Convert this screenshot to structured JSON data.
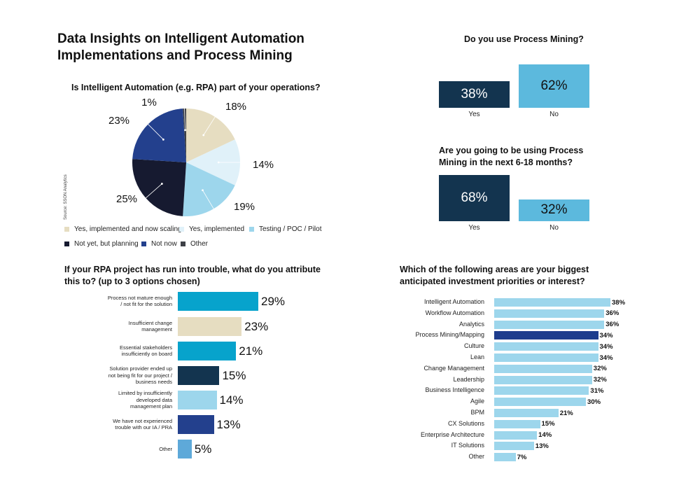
{
  "header": {
    "title_line1": "Data Insights on Intelligent Automation",
    "title_line2": "Implementations and Process Mining"
  },
  "source_note": "Source: SSON Analytics",
  "colors": {
    "navy": "#13344f",
    "sky": "#5cb9dd",
    "cyan": "#07a3cc",
    "beige": "#e6ddc1",
    "light_blue": "#9dd6ec",
    "pale_blue": "#e0f1f9",
    "black_navy": "#161a30",
    "royal_blue": "#23408d",
    "gray": "#3d4046",
    "mid_blue": "#5ea9d9",
    "highlight_bar": "#1e3d8d"
  },
  "chart_data": [
    {
      "type": "pie",
      "title": "Is Intelligent Automation (e.g. RPA) part of your operations?",
      "labels": [
        "Yes, implemented and now scaling",
        "Yes, implemented",
        "Testing / POC / Pilot",
        "Not yet, but planning",
        "Not now",
        "Other"
      ],
      "values": [
        18,
        14,
        19,
        25,
        23,
        1
      ],
      "value_labels": [
        "18%",
        "14%",
        "19%",
        "25%",
        "23%",
        "1%"
      ],
      "colors": [
        "#e6ddc1",
        "#e0f1f9",
        "#9dd6ec",
        "#161a30",
        "#23408d",
        "#3d4046"
      ],
      "legend_placement": "bottom"
    },
    {
      "type": "bar",
      "orientation": "vertical",
      "title": "Do you use Process Mining?",
      "categories": [
        "Yes",
        "No"
      ],
      "values": [
        38,
        62
      ],
      "value_labels": [
        "38%",
        "62%"
      ],
      "colors": [
        "#13344f",
        "#5cb9dd"
      ]
    },
    {
      "type": "bar",
      "orientation": "vertical",
      "title_line1": "Are you going to be using Process",
      "title_line2": "Mining in the next 6-18 months?",
      "categories": [
        "Yes",
        "No"
      ],
      "values": [
        68,
        32
      ],
      "value_labels": [
        "68%",
        "32%"
      ],
      "colors": [
        "#13344f",
        "#5cb9dd"
      ]
    },
    {
      "type": "bar",
      "orientation": "horizontal",
      "title_line1": "If your RPA project has run into trouble, what do you attribute",
      "title_line2": "this to? (up to 3 options chosen)",
      "categories": [
        [
          "Process not mature enough",
          "/ not fit for the solution"
        ],
        [
          "Insufficient change",
          "management"
        ],
        [
          "Essential stakeholders",
          "insufficiently on board"
        ],
        [
          "Solution provider ended up",
          "not being fit for our project /",
          "business needs"
        ],
        [
          "Limited by insufficiently",
          "developed data",
          "management plan"
        ],
        [
          "We have not experienced",
          "trouble with our IA / PRA"
        ],
        [
          "Other"
        ]
      ],
      "values": [
        29,
        23,
        21,
        15,
        14,
        13,
        5
      ],
      "value_labels": [
        "29%",
        "23%",
        "21%",
        "15%",
        "14%",
        "13%",
        "5%"
      ],
      "colors": [
        "#07a3cc",
        "#e6ddc1",
        "#07a3cc",
        "#13344f",
        "#9dd6ec",
        "#23408d",
        "#5ea9d9"
      ]
    },
    {
      "type": "bar",
      "orientation": "horizontal",
      "title_line1": "Which of the following areas are your biggest",
      "title_line2": "anticipated investment priorities or interest?",
      "categories": [
        "Intelligent Automation",
        "Workflow Automation",
        "Analytics",
        "Process Mining/Mapping",
        "Culture",
        "Lean",
        "Change Management",
        "Leadership",
        "Business Intelligence",
        "Agile",
        "BPM",
        "CX Solutions",
        "Enterprise Architecture",
        "IT Solutions",
        "Other"
      ],
      "values": [
        38,
        36,
        36,
        34,
        34,
        34,
        32,
        32,
        31,
        30,
        21,
        15,
        14,
        13,
        7
      ],
      "value_labels": [
        "38%",
        "36%",
        "36%",
        "34%",
        "34%",
        "34%",
        "32%",
        "32%",
        "31%",
        "30%",
        "21%",
        "15%",
        "14%",
        "13%",
        "7%"
      ],
      "highlight": "Process Mining/Mapping",
      "bar_color": "#9dd6ec",
      "highlight_color": "#1e3d8d"
    }
  ]
}
